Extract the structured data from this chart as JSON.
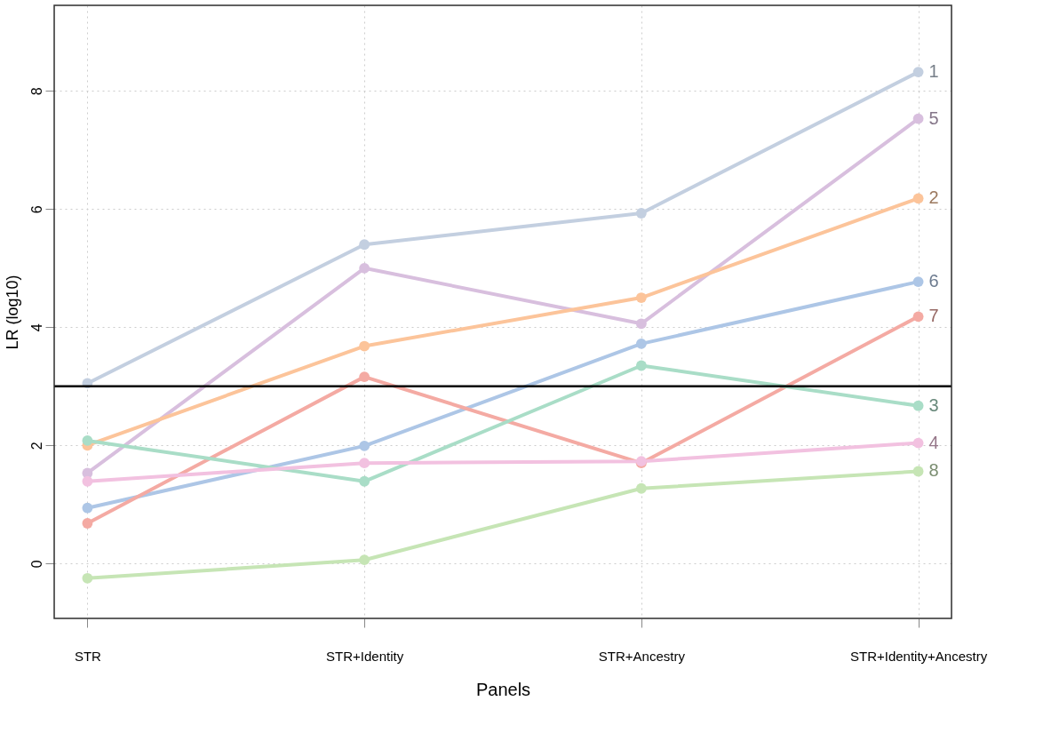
{
  "chart_data": {
    "type": "line",
    "xlabel": "Panels",
    "ylabel": "LR (log10)",
    "categories": [
      "STR",
      "STR+Identity",
      "STR+Ancestry",
      "STR+Identity+Ancestry"
    ],
    "ylim": [
      -0.93,
      9.45
    ],
    "yticks": [
      0,
      2,
      4,
      6,
      8
    ],
    "grid": true,
    "legend": false,
    "marker": "circle",
    "line_style": "solid",
    "ref_lines": [
      {
        "axis": "y",
        "value": 3,
        "color": "#000000",
        "line_style": "solid"
      }
    ],
    "series": [
      {
        "name": "1",
        "color": "#c3cfe0",
        "values": [
          3.05,
          5.4,
          5.93,
          8.32
        ]
      },
      {
        "name": "5",
        "color": "#d8bfde",
        "values": [
          1.53,
          5.0,
          4.06,
          7.53
        ]
      },
      {
        "name": "2",
        "color": "#fcc49a",
        "values": [
          2.0,
          3.68,
          4.5,
          6.18
        ]
      },
      {
        "name": "6",
        "color": "#adc6e6",
        "values": [
          0.94,
          1.99,
          3.72,
          4.77
        ]
      },
      {
        "name": "7",
        "color": "#f4aaa3",
        "values": [
          0.68,
          3.16,
          1.7,
          4.18
        ]
      },
      {
        "name": "3",
        "color": "#a9ddc7",
        "values": [
          2.08,
          1.39,
          3.35,
          2.67
        ]
      },
      {
        "name": "4",
        "color": "#f2c1e0",
        "values": [
          1.39,
          1.7,
          1.73,
          2.04
        ]
      },
      {
        "name": "8",
        "color": "#c6e5b5",
        "values": [
          -0.25,
          0.06,
          1.27,
          1.56
        ]
      }
    ]
  }
}
